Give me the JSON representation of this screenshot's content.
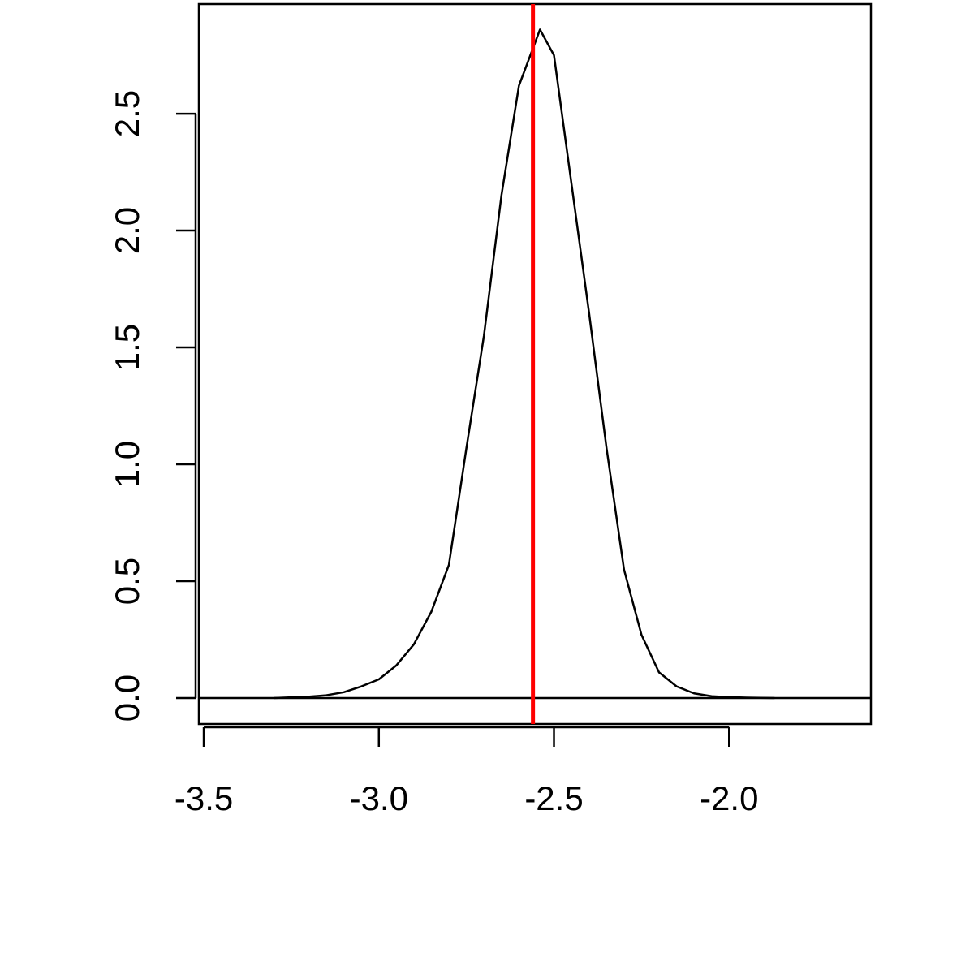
{
  "chart_data": {
    "type": "line",
    "x": [
      -3.3,
      -3.25,
      -3.2,
      -3.15,
      -3.1,
      -3.05,
      -3.0,
      -2.95,
      -2.9,
      -2.85,
      -2.8,
      -2.75,
      -2.7,
      -2.65,
      -2.6,
      -2.54,
      -2.5,
      -2.45,
      -2.4,
      -2.35,
      -2.3,
      -2.25,
      -2.2,
      -2.15,
      -2.1,
      -2.05,
      -2.0,
      -1.95,
      -1.87
    ],
    "values": [
      0.0,
      0.003,
      0.006,
      0.012,
      0.025,
      0.05,
      0.08,
      0.14,
      0.23,
      0.37,
      0.57,
      1.07,
      1.55,
      2.15,
      2.62,
      2.86,
      2.75,
      2.2,
      1.65,
      1.07,
      0.55,
      0.27,
      0.11,
      0.05,
      0.02,
      0.008,
      0.004,
      0.002,
      0.0
    ],
    "color": "#000000",
    "vline": {
      "value": -2.56,
      "color": "#ff0000"
    },
    "hline": {
      "value": 0,
      "color": "#000000"
    },
    "xlim": [
      -3.514,
      -1.595
    ],
    "ylim": [
      -0.111,
      2.969
    ],
    "xticks": [
      -3.5,
      {
        "value": -3.0,
        "label": "-3.0"
      },
      -2.5,
      {
        "value": -2.0,
        "label": "-2.0"
      }
    ],
    "yticks": [
      {
        "value": 0,
        "label": "0.0"
      },
      0.5,
      {
        "value": 1,
        "label": "1.0"
      },
      1.5,
      {
        "value": 2,
        "label": "2.0"
      },
      2.5
    ]
  }
}
